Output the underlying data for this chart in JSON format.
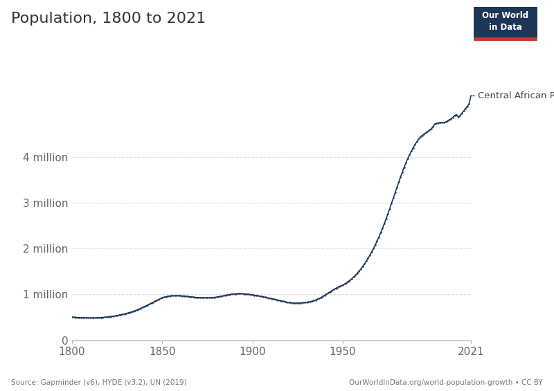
{
  "title": "Population, 1800 to 2021",
  "line_color": "#1d3557",
  "background_color": "#ffffff",
  "source_text": "Source: Gapminder (v6), HYDE (v3.2), UN (2019)",
  "url_text": "OurWorldInData.org/world-population-growth • CC BY",
  "label_text": "Central African Republic",
  "owid_box_color": "#1d3557",
  "owid_red": "#c0392b",
  "years": [
    1800,
    1801,
    1802,
    1803,
    1804,
    1805,
    1806,
    1807,
    1808,
    1809,
    1810,
    1811,
    1812,
    1813,
    1814,
    1815,
    1816,
    1817,
    1818,
    1819,
    1820,
    1821,
    1822,
    1823,
    1824,
    1825,
    1826,
    1827,
    1828,
    1829,
    1830,
    1831,
    1832,
    1833,
    1834,
    1835,
    1836,
    1837,
    1838,
    1839,
    1840,
    1841,
    1842,
    1843,
    1844,
    1845,
    1846,
    1847,
    1848,
    1849,
    1850,
    1851,
    1852,
    1853,
    1854,
    1855,
    1856,
    1857,
    1858,
    1859,
    1860,
    1861,
    1862,
    1863,
    1864,
    1865,
    1866,
    1867,
    1868,
    1869,
    1870,
    1871,
    1872,
    1873,
    1874,
    1875,
    1876,
    1877,
    1878,
    1879,
    1880,
    1881,
    1882,
    1883,
    1884,
    1885,
    1886,
    1887,
    1888,
    1889,
    1890,
    1891,
    1892,
    1893,
    1894,
    1895,
    1896,
    1897,
    1898,
    1899,
    1900,
    1901,
    1902,
    1903,
    1904,
    1905,
    1906,
    1907,
    1908,
    1909,
    1910,
    1911,
    1912,
    1913,
    1914,
    1915,
    1916,
    1917,
    1918,
    1919,
    1920,
    1921,
    1922,
    1923,
    1924,
    1925,
    1926,
    1927,
    1928,
    1929,
    1930,
    1931,
    1932,
    1933,
    1934,
    1935,
    1936,
    1937,
    1938,
    1939,
    1940,
    1941,
    1942,
    1943,
    1944,
    1945,
    1946,
    1947,
    1948,
    1949,
    1950,
    1951,
    1952,
    1953,
    1954,
    1955,
    1956,
    1957,
    1958,
    1959,
    1960,
    1961,
    1962,
    1963,
    1964,
    1965,
    1966,
    1967,
    1968,
    1969,
    1970,
    1971,
    1972,
    1973,
    1974,
    1975,
    1976,
    1977,
    1978,
    1979,
    1980,
    1981,
    1982,
    1983,
    1984,
    1985,
    1986,
    1987,
    1988,
    1989,
    1990,
    1991,
    1992,
    1993,
    1994,
    1995,
    1996,
    1997,
    1998,
    1999,
    2000,
    2001,
    2002,
    2003,
    2004,
    2005,
    2006,
    2007,
    2008,
    2009,
    2010,
    2011,
    2012,
    2013,
    2014,
    2015,
    2016,
    2017,
    2018,
    2019,
    2020,
    2021
  ],
  "population": [
    500000,
    500000,
    498000,
    495000,
    493000,
    491000,
    489000,
    488000,
    487000,
    486000,
    486000,
    486000,
    487000,
    488000,
    490000,
    492000,
    494000,
    497000,
    500000,
    503000,
    507000,
    512000,
    518000,
    524000,
    530000,
    537000,
    545000,
    553000,
    562000,
    571000,
    581000,
    592000,
    604000,
    617000,
    630000,
    645000,
    660000,
    677000,
    694000,
    712000,
    730000,
    749000,
    768000,
    788000,
    808000,
    829000,
    850000,
    870000,
    889000,
    907000,
    924000,
    937000,
    948000,
    957000,
    963000,
    967000,
    969000,
    970000,
    970000,
    969000,
    968000,
    966000,
    963000,
    959000,
    955000,
    950000,
    945000,
    940000,
    936000,
    933000,
    930000,
    928000,
    926000,
    925000,
    924000,
    924000,
    925000,
    927000,
    930000,
    934000,
    939000,
    945000,
    952000,
    960000,
    968000,
    977000,
    985000,
    993000,
    1000000,
    1005000,
    1009000,
    1012000,
    1014000,
    1014000,
    1013000,
    1011000,
    1008000,
    1004000,
    999000,
    994000,
    988000,
    982000,
    975000,
    968000,
    961000,
    953000,
    945000,
    937000,
    928000,
    919000,
    910000,
    901000,
    892000,
    883000,
    874000,
    865000,
    856000,
    847000,
    838000,
    829000,
    820000,
    816000,
    813000,
    811000,
    810000,
    810000,
    811000,
    813000,
    816000,
    820000,
    825000,
    832000,
    840000,
    850000,
    862000,
    876000,
    892000,
    910000,
    931000,
    955000,
    980000,
    1006000,
    1032000,
    1057000,
    1082000,
    1105000,
    1127000,
    1148000,
    1167000,
    1184000,
    1200000,
    1224000,
    1250000,
    1278000,
    1308000,
    1341000,
    1377000,
    1416000,
    1459000,
    1504000,
    1553000,
    1606000,
    1662000,
    1722000,
    1786000,
    1853000,
    1924000,
    1998000,
    2077000,
    2160000,
    2248000,
    2341000,
    2438000,
    2540000,
    2646000,
    2756000,
    2869000,
    2984000,
    3100000,
    3217000,
    3333000,
    3447000,
    3559000,
    3667000,
    3771000,
    3869000,
    3961000,
    4046000,
    4124000,
    4197000,
    4266000,
    4328000,
    4384000,
    4432000,
    4465000,
    4493000,
    4522000,
    4552000,
    4580000,
    4608000,
    4660000,
    4714000,
    4731000,
    4737000,
    4747000,
    4746000,
    4745000,
    4757000,
    4782000,
    4808000,
    4829000,
    4860000,
    4901000,
    4919000,
    4867000,
    4900000,
    4950000,
    5000000,
    5050000,
    5100000,
    5150000,
    5330000
  ],
  "yticks": [
    0,
    1000000,
    2000000,
    3000000,
    4000000
  ],
  "ytick_labels": [
    "0",
    "1 million",
    "2 million",
    "3 million",
    "4 million"
  ],
  "ylim": [
    0,
    5800000
  ],
  "xlim": [
    1800,
    2021
  ]
}
